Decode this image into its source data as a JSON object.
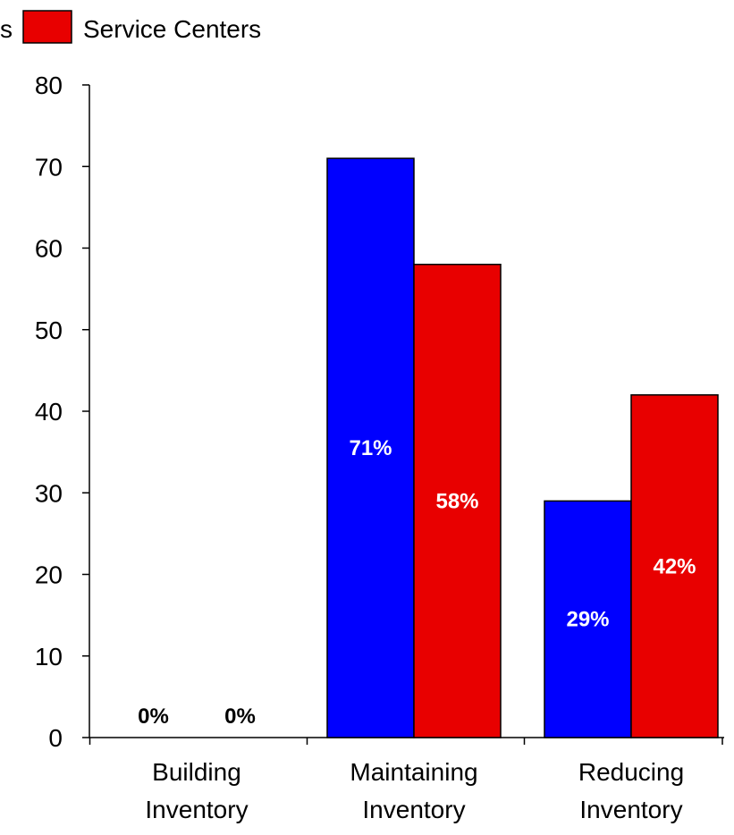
{
  "chart_data": {
    "type": "bar",
    "categories": [
      [
        "Building",
        "Inventory"
      ],
      [
        "Maintaining",
        "Inventory"
      ],
      [
        "Reducing",
        "Inventory"
      ]
    ],
    "series": [
      {
        "name": "s",
        "color": "#0000ff",
        "values": [
          0,
          71,
          29
        ],
        "labels": [
          "0%",
          "71%",
          "29%"
        ]
      },
      {
        "name": "Service Centers",
        "color": "#e80000",
        "values": [
          0,
          58,
          42
        ],
        "labels": [
          "0%",
          "58%",
          "42%"
        ]
      }
    ],
    "ylim": [
      0,
      80
    ],
    "yticks": [
      0,
      10,
      20,
      30,
      40,
      50,
      60,
      70,
      80
    ],
    "grid": false,
    "legend": "top-left",
    "data_label_colors": {
      "on_bar": "#ffffff",
      "zero": "#000000"
    }
  }
}
